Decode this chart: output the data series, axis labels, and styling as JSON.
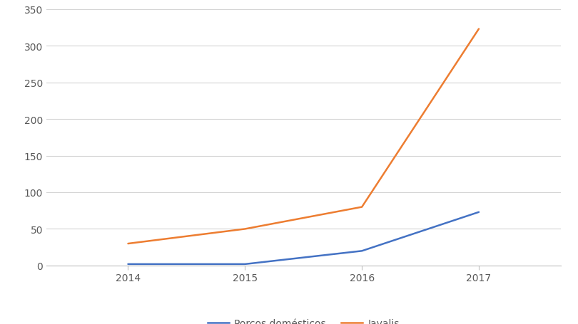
{
  "years": [
    2014,
    2015,
    2016,
    2017
  ],
  "porcos_domesticos": [
    2,
    2,
    20,
    73
  ],
  "javalis": [
    30,
    50,
    80,
    323
  ],
  "porcos_color": "#4472C4",
  "javalis_color": "#ED7D31",
  "legend_porcos": "Porcos domésticos",
  "legend_javalis": "Javalis",
  "ylim": [
    0,
    350
  ],
  "yticks": [
    0,
    50,
    100,
    150,
    200,
    250,
    300,
    350
  ],
  "background_color": "#ffffff",
  "grid_color": "#d3d3d3",
  "line_width": 1.8,
  "tick_fontsize": 10,
  "tick_color": "#595959",
  "xlim_left": 2013.3,
  "xlim_right": 2017.7
}
